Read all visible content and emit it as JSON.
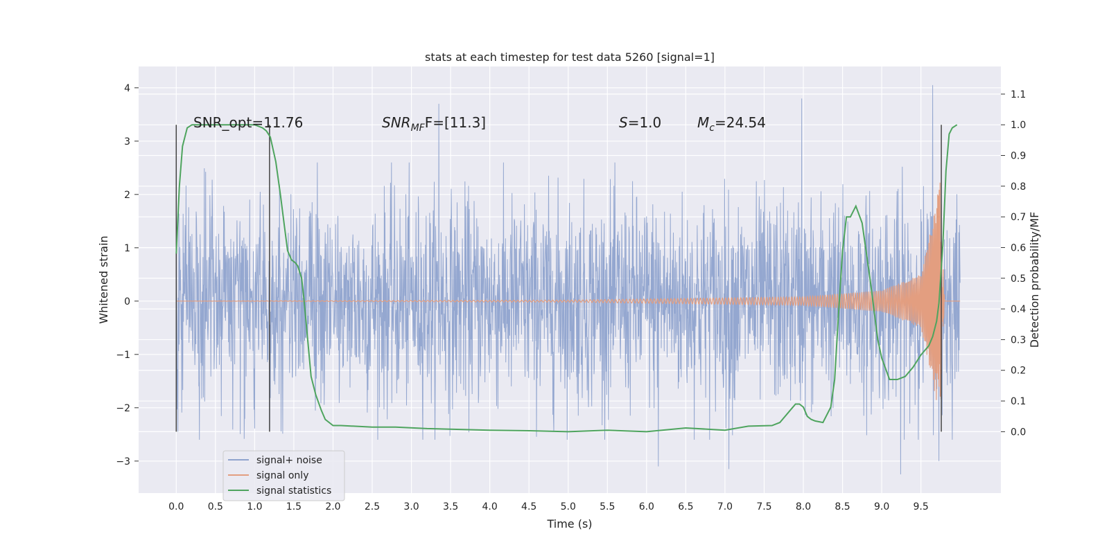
{
  "chart_data": {
    "type": "line",
    "title": "stats at each timestep for test data 5260 [signal=1]",
    "xlabel": "Time (s)",
    "ylabel": "Whitened strain",
    "ylabel_right": "Detection probability/MF",
    "xlim": [
      -0.48,
      10.52
    ],
    "ylim": [
      -3.6,
      4.4
    ],
    "ylim_right": [
      -0.2,
      1.19
    ],
    "x_ticks": [
      "0.0",
      "0.5",
      "1.0",
      "1.5",
      "2.0",
      "2.5",
      "3.0",
      "3.5",
      "4.0",
      "4.5",
      "5.0",
      "5.5",
      "6.0",
      "6.5",
      "7.0",
      "7.5",
      "8.0",
      "8.5",
      "9.0",
      "9.5"
    ],
    "y_ticks": [
      "−3",
      "−2",
      "−1",
      "0",
      "1",
      "2",
      "3",
      "4"
    ],
    "y_ticks_right": [
      "0.0",
      "0.1",
      "0.2",
      "0.3",
      "0.4",
      "0.5",
      "0.6",
      "0.7",
      "0.8",
      "0.9",
      "1.0",
      "1.1"
    ],
    "grid": true,
    "legend_position": "lower-left",
    "annotations": {
      "snr_opt": "SNR_opt=11.76",
      "snr_mf_main": "SNR",
      "snr_mf_sub": "MF",
      "snr_mf_tail": "F=[11.3]",
      "s_main": "S",
      "s_tail": "=1.0",
      "mc_main": "M",
      "mc_sub": "c",
      "mc_tail": "=24.54"
    },
    "vlines_x": [
      0.0,
      1.19,
      9.76
    ],
    "series": [
      {
        "name": "signal+ noise",
        "color": "#8fa3cd",
        "x_range": [
          0.0,
          10.0
        ],
        "typical_amplitude": 1.55,
        "extreme_peaks": [
          {
            "x": 0.0,
            "y": 3.3
          },
          {
            "x": 0.02,
            "y": -2.45
          },
          {
            "x": 1.19,
            "y": -2.4
          },
          {
            "x": 3.35,
            "y": 3.7
          },
          {
            "x": 7.98,
            "y": 3.8
          },
          {
            "x": 9.24,
            "y": -3.25
          },
          {
            "x": 9.65,
            "y": 4.05
          },
          {
            "x": 9.73,
            "y": -3.0
          },
          {
            "x": 6.15,
            "y": -3.1
          },
          {
            "x": 7.05,
            "y": -3.15
          }
        ]
      },
      {
        "name": "signal only",
        "color": "#e39e80",
        "description_points": [
          [
            0.0,
            0.0
          ],
          [
            5.0,
            0.02
          ],
          [
            8.0,
            0.08
          ],
          [
            9.0,
            0.2
          ],
          [
            9.5,
            0.5
          ],
          [
            9.65,
            1.5
          ],
          [
            9.75,
            2.3
          ],
          [
            9.8,
            0.0
          ]
        ]
      },
      {
        "name": "signal statistics",
        "color": "#4ea45e",
        "axis": "right",
        "x": [
          0.0,
          0.04,
          0.08,
          0.14,
          0.2,
          0.3,
          0.5,
          0.8,
          1.0,
          1.1,
          1.15,
          1.2,
          1.27,
          1.33,
          1.38,
          1.42,
          1.47,
          1.52,
          1.55,
          1.6,
          1.63,
          1.67,
          1.72,
          1.78,
          1.85,
          1.9,
          2.0,
          2.1,
          2.5,
          2.8,
          3.2,
          4.0,
          4.5,
          5.0,
          5.5,
          6.0,
          6.5,
          7.0,
          7.3,
          7.6,
          7.7,
          7.8,
          7.9,
          7.95,
          8.0,
          8.05,
          8.1,
          8.15,
          8.25,
          8.35,
          8.4,
          8.45,
          8.5,
          8.55,
          8.6,
          8.67,
          8.75,
          8.85,
          8.95,
          9.0,
          9.1,
          9.2,
          9.3,
          9.4,
          9.5,
          9.6,
          9.65,
          9.7,
          9.73,
          9.78,
          9.82,
          9.86,
          9.9,
          9.96
        ],
        "values": [
          0.58,
          0.8,
          0.93,
          0.99,
          1.0,
          1.0,
          1.0,
          1.0,
          1.0,
          0.99,
          0.98,
          0.96,
          0.88,
          0.77,
          0.67,
          0.59,
          0.56,
          0.55,
          0.54,
          0.5,
          0.43,
          0.32,
          0.18,
          0.12,
          0.07,
          0.04,
          0.02,
          0.02,
          0.015,
          0.015,
          0.01,
          0.005,
          0.003,
          0.0,
          0.005,
          0.0,
          0.012,
          0.005,
          0.018,
          0.02,
          0.03,
          0.06,
          0.09,
          0.09,
          0.08,
          0.05,
          0.04,
          0.035,
          0.03,
          0.08,
          0.17,
          0.39,
          0.59,
          0.7,
          0.7,
          0.735,
          0.68,
          0.5,
          0.3,
          0.24,
          0.17,
          0.17,
          0.18,
          0.21,
          0.25,
          0.28,
          0.31,
          0.36,
          0.42,
          0.61,
          0.85,
          0.97,
          0.99,
          1.0
        ]
      }
    ]
  }
}
